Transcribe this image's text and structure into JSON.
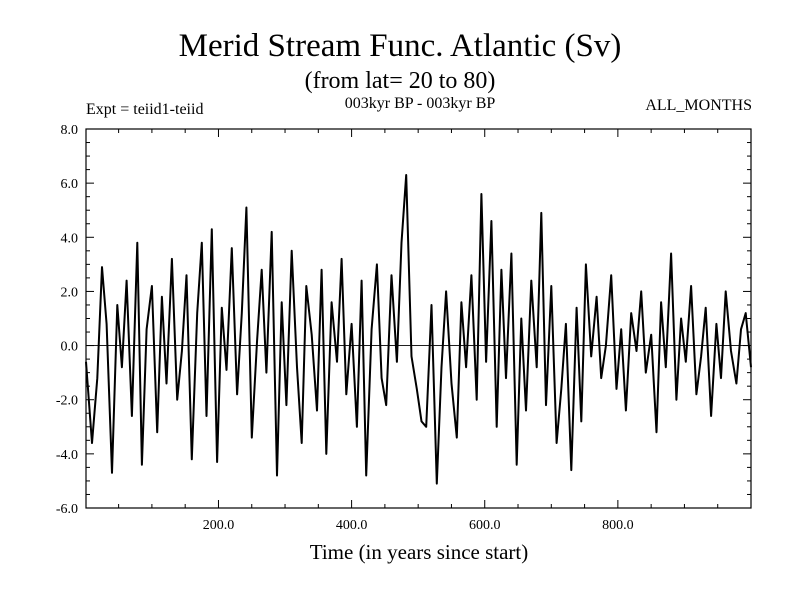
{
  "header": {
    "title": "Merid Stream Func. Atlantic (Sv)",
    "subtitle": "(from lat= 20 to 80)",
    "expt": "Expt = teiid1-teiid",
    "period": "003kyr BP - 003kyr BP",
    "months": "ALL_MONTHS"
  },
  "chart_data": {
    "type": "line",
    "title": "Merid Stream Func. Atlantic (Sv)",
    "xlabel": "Time (in years since start)",
    "ylabel": "",
    "xlim": [
      1,
      1000
    ],
    "ylim": [
      -6.0,
      8.0
    ],
    "x_ticks": [
      200,
      400,
      600,
      800
    ],
    "x_tick_labels": [
      "200.0",
      "400.0",
      "600.0",
      "800.0"
    ],
    "y_ticks": [
      -6,
      -4,
      -2,
      0,
      2,
      4,
      6,
      8
    ],
    "y_tick_labels": [
      "-6.0",
      "-4.0",
      "-2.0",
      "0.0",
      "2.0",
      "4.0",
      "6.0",
      "8.0"
    ],
    "zero_line": true,
    "grid": false,
    "series": [
      {
        "color": "#000000",
        "x": [
          1,
          10,
          18,
          25,
          32,
          40,
          48,
          55,
          62,
          70,
          78,
          85,
          92,
          100,
          108,
          115,
          122,
          130,
          138,
          145,
          152,
          160,
          168,
          175,
          182,
          190,
          198,
          205,
          212,
          220,
          228,
          235,
          242,
          250,
          258,
          265,
          272,
          280,
          288,
          295,
          302,
          310,
          318,
          325,
          332,
          340,
          348,
          355,
          362,
          370,
          378,
          385,
          392,
          400,
          408,
          415,
          422,
          430,
          438,
          445,
          452,
          460,
          468,
          475,
          482,
          490,
          498,
          505,
          512,
          520,
          528,
          535,
          542,
          550,
          558,
          565,
          572,
          580,
          588,
          595,
          602,
          610,
          618,
          625,
          632,
          640,
          648,
          655,
          662,
          670,
          678,
          685,
          692,
          700,
          708,
          715,
          722,
          730,
          738,
          745,
          752,
          760,
          768,
          775,
          782,
          790,
          798,
          805,
          812,
          820,
          828,
          835,
          842,
          850,
          858,
          865,
          872,
          880,
          888,
          895,
          902,
          910,
          918,
          925,
          932,
          940,
          948,
          955,
          962,
          970,
          978,
          985,
          992,
          1000
        ],
        "values": [
          -0.6,
          -3.6,
          -1.2,
          2.9,
          0.8,
          -4.7,
          1.5,
          -0.8,
          2.4,
          -2.6,
          3.8,
          -4.4,
          0.6,
          2.2,
          -3.2,
          1.8,
          -1.4,
          3.2,
          -2.0,
          -0.2,
          2.6,
          -4.2,
          1.2,
          3.8,
          -2.6,
          4.3,
          -4.3,
          1.4,
          -0.9,
          3.6,
          -1.8,
          1.2,
          5.1,
          -3.4,
          0.2,
          2.8,
          -1.0,
          4.2,
          -4.8,
          1.6,
          -2.2,
          3.5,
          -0.8,
          -3.6,
          2.2,
          0.4,
          -2.4,
          2.8,
          -4.0,
          1.6,
          -0.6,
          3.2,
          -1.8,
          0.8,
          -3.0,
          2.4,
          -4.8,
          0.6,
          3.0,
          -1.2,
          -2.2,
          2.6,
          -0.6,
          3.8,
          6.3,
          -0.4,
          -1.6,
          -2.8,
          -3.0,
          1.5,
          -5.1,
          -0.8,
          2.0,
          -1.4,
          -3.4,
          1.6,
          -0.8,
          2.6,
          -2.0,
          5.6,
          -0.6,
          4.6,
          -3.0,
          2.8,
          -1.2,
          3.4,
          -4.4,
          1.0,
          -2.4,
          2.4,
          -0.8,
          4.9,
          -2.2,
          2.2,
          -3.6,
          -1.6,
          0.8,
          -4.6,
          1.4,
          -2.8,
          3.0,
          -0.4,
          1.8,
          -1.2,
          0.0,
          2.6,
          -1.6,
          0.6,
          -2.4,
          1.2,
          -0.2,
          2.0,
          -1.0,
          0.4,
          -3.2,
          1.6,
          -0.8,
          3.4,
          -2.0,
          1.0,
          -0.6,
          2.2,
          -1.8,
          -0.4,
          1.4,
          -2.6,
          0.8,
          -1.2,
          2.0,
          -0.2,
          -1.4,
          0.6,
          1.2,
          -0.8
        ]
      }
    ]
  }
}
